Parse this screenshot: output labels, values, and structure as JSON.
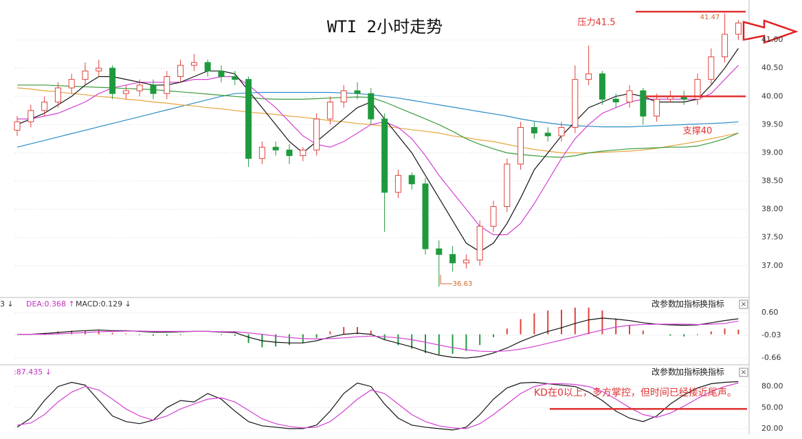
{
  "chart_data": [
    {
      "type": "candlestick",
      "title": "WTI 2小时走势",
      "ylim": [
        36.45,
        41.707
      ],
      "yticks": [
        {
          "value": 41,
          "label": "41.00"
        },
        {
          "value": 40.5,
          "label": "40.50"
        },
        {
          "value": 40,
          "label": "40.00"
        },
        {
          "value": 39.5,
          "label": "39.50"
        },
        {
          "value": 39,
          "label": "39.00"
        },
        {
          "value": 38.5,
          "label": "38.50"
        },
        {
          "value": 38,
          "label": "38.00"
        },
        {
          "value": 37.5,
          "label": "37.50"
        },
        {
          "value": 37,
          "label": "37.00"
        }
      ],
      "grid": true,
      "up_color": "#e0403a",
      "down_color": "#1e9a3c",
      "ohlc": {
        "open": [
          39.4,
          39.55,
          39.75,
          39.9,
          40.15,
          40.3,
          40.45,
          40.5,
          40.05,
          40.1,
          40.2,
          40.05,
          40.35,
          40.55,
          40.6,
          40.45,
          40.35,
          40.3,
          38.9,
          39.1,
          39.05,
          38.95,
          39.05,
          39.6,
          39.9,
          40.1,
          40.05,
          39.6,
          38.3,
          38.6,
          38.45,
          37.3,
          37.2,
          37.05,
          37.1,
          37.7,
          38.05,
          38.8,
          39.45,
          39.35,
          39.3,
          39.45,
          40.3,
          40.4,
          39.95,
          39.9,
          40.1,
          39.65,
          39.95,
          40.0,
          39.95,
          40.3,
          40.7,
          41.1
        ],
        "high": [
          39.65,
          39.85,
          40.0,
          40.25,
          40.4,
          40.6,
          40.65,
          40.55,
          40.2,
          40.3,
          40.3,
          40.45,
          40.65,
          40.75,
          40.65,
          40.55,
          40.45,
          40.35,
          39.2,
          39.2,
          39.15,
          39.1,
          39.7,
          40.0,
          40.2,
          40.25,
          40.15,
          39.7,
          38.7,
          38.65,
          38.55,
          37.45,
          37.35,
          37.2,
          37.8,
          38.15,
          38.9,
          39.55,
          39.55,
          39.45,
          39.55,
          40.55,
          40.9,
          40.45,
          40.05,
          40.2,
          40.15,
          40.05,
          40.1,
          40.1,
          40.4,
          40.85,
          41.47,
          41.35
        ],
        "low": [
          39.3,
          39.45,
          39.65,
          39.8,
          40.05,
          40.2,
          40.35,
          39.95,
          39.95,
          40.0,
          39.95,
          39.95,
          40.25,
          40.45,
          40.35,
          40.25,
          40.2,
          38.75,
          38.8,
          38.95,
          38.8,
          38.85,
          38.95,
          39.5,
          39.8,
          39.95,
          39.5,
          37.6,
          38.2,
          38.35,
          37.2,
          36.63,
          36.9,
          36.95,
          37.0,
          37.6,
          37.95,
          38.7,
          39.25,
          39.2,
          39.2,
          39.35,
          40.2,
          39.85,
          39.8,
          39.8,
          39.5,
          39.55,
          39.9,
          39.85,
          39.85,
          40.2,
          40.6,
          41.0
        ],
        "close": [
          39.55,
          39.75,
          39.9,
          40.15,
          40.3,
          40.45,
          40.5,
          40.05,
          40.1,
          40.2,
          40.05,
          40.35,
          40.55,
          40.6,
          40.45,
          40.35,
          40.3,
          38.9,
          39.1,
          39.05,
          38.95,
          39.05,
          39.6,
          39.9,
          40.1,
          40.05,
          39.6,
          38.3,
          38.6,
          38.45,
          37.3,
          37.2,
          37.05,
          37.1,
          37.7,
          38.05,
          38.8,
          39.45,
          39.35,
          39.3,
          39.45,
          40.3,
          40.4,
          39.95,
          39.9,
          40.1,
          39.65,
          39.95,
          40.0,
          39.95,
          40.3,
          40.7,
          41.1,
          41.3
        ]
      },
      "series": [
        {
          "color": "#2a8bc4",
          "values": [
            39.1,
            39.16,
            39.22,
            39.28,
            39.34,
            39.4,
            39.46,
            39.52,
            39.58,
            39.64,
            39.7,
            39.76,
            39.82,
            39.88,
            39.94,
            40.0,
            40.05,
            40.06,
            40.07,
            40.07,
            40.07,
            40.07,
            40.07,
            40.07,
            40.06,
            40.05,
            40.03,
            40.0,
            39.97,
            39.93,
            39.89,
            39.85,
            39.81,
            39.77,
            39.73,
            39.69,
            39.65,
            39.6,
            39.56,
            39.53,
            39.5,
            39.48,
            39.47,
            39.46,
            39.46,
            39.46,
            39.47,
            39.48,
            39.49,
            39.5,
            39.51,
            39.52,
            39.53,
            39.55
          ]
        },
        {
          "color": "#e8a33c",
          "values": [
            40.15,
            40.13,
            40.1,
            40.08,
            40.05,
            40.03,
            40.0,
            39.98,
            39.95,
            39.93,
            39.9,
            39.88,
            39.85,
            39.83,
            39.8,
            39.78,
            39.75,
            39.72,
            39.7,
            39.68,
            39.65,
            39.63,
            39.6,
            39.57,
            39.55,
            39.52,
            39.5,
            39.47,
            39.44,
            39.41,
            39.38,
            39.35,
            39.3,
            39.27,
            39.23,
            39.2,
            39.15,
            39.1,
            39.06,
            39.03,
            39.0,
            39.0,
            39.0,
            39.01,
            39.02,
            39.03,
            39.05,
            39.08,
            39.12,
            39.16,
            39.2,
            39.25,
            39.3,
            39.35
          ]
        },
        {
          "color": "#3a9a3a",
          "values": [
            40.2,
            40.2,
            40.2,
            40.19,
            40.18,
            40.17,
            40.16,
            40.15,
            40.14,
            40.13,
            40.12,
            40.1,
            40.08,
            40.06,
            40.04,
            40.02,
            40.0,
            39.98,
            39.96,
            39.95,
            39.95,
            39.95,
            39.96,
            39.97,
            39.98,
            39.99,
            39.98,
            39.9,
            39.8,
            39.7,
            39.6,
            39.5,
            39.38,
            39.25,
            39.15,
            39.07,
            39.0,
            38.97,
            38.95,
            38.93,
            38.92,
            38.95,
            39.0,
            39.03,
            39.05,
            39.07,
            39.08,
            39.09,
            39.1,
            39.1,
            39.12,
            39.18,
            39.25,
            39.35
          ]
        },
        {
          "color": "#d33fd3",
          "values": [
            39.6,
            39.6,
            39.65,
            39.7,
            39.8,
            39.9,
            40.05,
            40.15,
            40.2,
            40.25,
            40.25,
            40.25,
            40.25,
            40.3,
            40.3,
            40.35,
            40.35,
            40.2,
            40.0,
            39.8,
            39.55,
            39.3,
            39.15,
            39.1,
            39.2,
            39.35,
            39.5,
            39.55,
            39.45,
            39.25,
            38.95,
            38.6,
            38.3,
            38.0,
            37.7,
            37.55,
            37.55,
            37.75,
            38.1,
            38.5,
            38.9,
            39.25,
            39.5,
            39.7,
            39.8,
            39.9,
            39.95,
            39.95,
            39.95,
            39.95,
            39.95,
            40.05,
            40.3,
            40.55
          ]
        },
        {
          "color": "#111111",
          "values": [
            39.5,
            39.6,
            39.7,
            39.85,
            40.0,
            40.2,
            40.35,
            40.35,
            40.3,
            40.25,
            40.2,
            40.2,
            40.25,
            40.35,
            40.45,
            40.45,
            40.4,
            40.1,
            39.8,
            39.5,
            39.2,
            39.0,
            39.2,
            39.4,
            39.6,
            39.8,
            39.9,
            39.6,
            39.3,
            39.0,
            38.6,
            38.2,
            37.8,
            37.4,
            37.25,
            37.4,
            37.75,
            38.2,
            38.7,
            39.0,
            39.3,
            39.55,
            39.8,
            39.9,
            40.0,
            40.05,
            40.0,
            39.9,
            39.9,
            39.9,
            39.95,
            40.2,
            40.5,
            40.85
          ]
        }
      ],
      "levels": [
        {
          "value": 41.5,
          "label": "压力41.5",
          "color": "#e03030"
        },
        {
          "value": 40,
          "label": "支撑40",
          "color": "#e03030"
        }
      ],
      "annotations": [
        {
          "text": "41.47",
          "color": "#d0662a"
        },
        {
          "text": "36.63",
          "color": "#d0662a"
        }
      ]
    },
    {
      "type": "macd",
      "ylim": [
        -0.79,
        0.85
      ],
      "yticks": [
        {
          "value": 0.6,
          "label": "0.60"
        },
        -0.03,
        -0.66
      ],
      "header": [
        {
          "text": "3 ↓",
          "color": "#333333"
        },
        {
          "text": "DEA:0.368 ↑",
          "color": "#c030c0"
        },
        {
          "text": "MACD:0.129 ↓",
          "color": "#333333"
        }
      ],
      "toolbar": [
        "改参数",
        "加指标",
        "换指标",
        "×"
      ],
      "up_color": "#e0403a",
      "down_color": "#1e9a3c",
      "histogram": [
        0,
        0,
        0.04,
        0.08,
        0.1,
        0.1,
        0.1,
        0.04,
        0.02,
        -0.02,
        -0.04,
        -0.04,
        -0.02,
        0,
        0,
        -0.02,
        -0.04,
        -0.24,
        -0.36,
        -0.34,
        -0.3,
        -0.24,
        -0.1,
        0.08,
        0.2,
        0.2,
        0.1,
        -0.16,
        -0.3,
        -0.4,
        -0.52,
        -0.56,
        -0.54,
        -0.46,
        -0.3,
        -0.08,
        0.16,
        0.42,
        0.58,
        0.66,
        0.68,
        0.74,
        0.74,
        0.66,
        0.44,
        0.26,
        0.1,
        0,
        -0.04,
        -0.06,
        -0.02,
        0.08,
        0.16,
        0.129
      ],
      "series": [
        {
          "color": "#111111",
          "values": [
            0.0,
            0.0,
            0.02,
            0.05,
            0.08,
            0.1,
            0.12,
            0.1,
            0.1,
            0.08,
            0.06,
            0.06,
            0.07,
            0.08,
            0.08,
            0.06,
            0.05,
            -0.08,
            -0.18,
            -0.22,
            -0.24,
            -0.24,
            -0.18,
            -0.08,
            0.0,
            0.03,
            0.0,
            -0.15,
            -0.25,
            -0.35,
            -0.48,
            -0.58,
            -0.64,
            -0.66,
            -0.62,
            -0.52,
            -0.38,
            -0.2,
            -0.05,
            0.08,
            0.18,
            0.3,
            0.4,
            0.45,
            0.42,
            0.38,
            0.32,
            0.28,
            0.26,
            0.25,
            0.26,
            0.32,
            0.38,
            0.43
          ]
        },
        {
          "color": "#d33fd3",
          "values": [
            0.0,
            0.0,
            0.0,
            0.01,
            0.03,
            0.05,
            0.07,
            0.08,
            0.09,
            0.09,
            0.08,
            0.08,
            0.08,
            0.08,
            0.08,
            0.07,
            0.07,
            0.04,
            0.0,
            -0.05,
            -0.09,
            -0.12,
            -0.13,
            -0.12,
            -0.1,
            -0.07,
            -0.05,
            -0.07,
            -0.1,
            -0.15,
            -0.22,
            -0.3,
            -0.37,
            -0.43,
            -0.47,
            -0.48,
            -0.46,
            -0.41,
            -0.34,
            -0.25,
            -0.16,
            -0.07,
            0.03,
            0.12,
            0.2,
            0.25,
            0.27,
            0.28,
            0.28,
            0.28,
            0.27,
            0.28,
            0.3,
            0.368
          ]
        }
      ]
    },
    {
      "type": "kd",
      "ylim": [
        14,
        110
      ],
      "yticks": [
        {
          "value": 80,
          "label": "80.00"
        },
        {
          "value": 50,
          "label": "50.00"
        },
        {
          "value": 20,
          "label": "20.00"
        }
      ],
      "header": [
        {
          "text": ":87.435 ↓",
          "color": "#c030c0"
        }
      ],
      "toolbar": [
        "改参数",
        "加指标",
        "换指标",
        "×"
      ],
      "series": [
        {
          "color": "#111111",
          "values": [
            22,
            35,
            60,
            80,
            86,
            82,
            60,
            38,
            30,
            27,
            32,
            50,
            60,
            58,
            70,
            62,
            45,
            30,
            24,
            22,
            20,
            20,
            25,
            45,
            70,
            85,
            80,
            55,
            35,
            25,
            22,
            20,
            18,
            22,
            40,
            62,
            78,
            85,
            86,
            84,
            82,
            80,
            72,
            60,
            45,
            35,
            30,
            38,
            55,
            68,
            78,
            84,
            86,
            87
          ]
        },
        {
          "color": "#d33fd3",
          "values": [
            25,
            28,
            40,
            58,
            72,
            80,
            75,
            62,
            48,
            38,
            32,
            38,
            48,
            55,
            62,
            64,
            58,
            46,
            34,
            27,
            23,
            21,
            22,
            30,
            45,
            62,
            75,
            70,
            55,
            40,
            30,
            24,
            21,
            20,
            27,
            40,
            55,
            70,
            80,
            84,
            84,
            83,
            80,
            73,
            62,
            50,
            40,
            36,
            42,
            52,
            63,
            73,
            80,
            85
          ]
        }
      ],
      "levels": [
        {
          "value": 48,
          "label": "KD在0以上，多方掌控，但时间已经接近尾声。",
          "color": "#e03030"
        }
      ]
    }
  ]
}
